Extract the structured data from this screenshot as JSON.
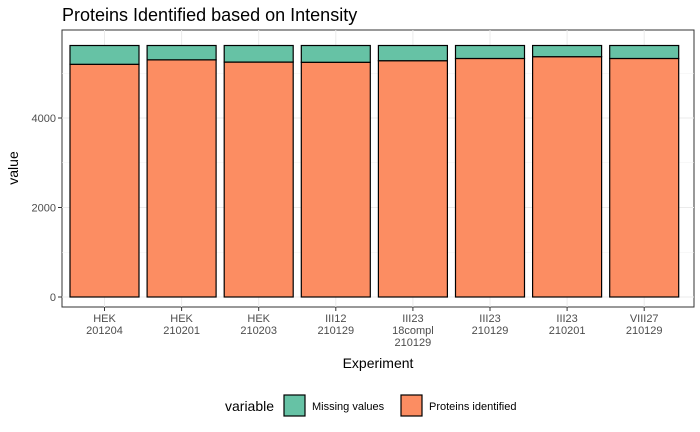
{
  "chart_data": {
    "type": "bar",
    "stacked": true,
    "title": "Proteins Identified based on Intensity",
    "xlabel": "Experiment",
    "ylabel": "value",
    "ylim": [
      0,
      5900
    ],
    "yticks": [
      0,
      2000,
      4000
    ],
    "ytick_labels": [
      "0",
      "2000",
      "4000"
    ],
    "grid": true,
    "legend": {
      "title": "variable",
      "position": "bottom"
    },
    "categories": [
      [
        "HEK",
        "201204"
      ],
      [
        "HEK",
        "210201"
      ],
      [
        "HEK",
        "210203"
      ],
      [
        "III12",
        "210129"
      ],
      [
        "III23",
        "18compl",
        "210129"
      ],
      [
        "III23",
        "210129"
      ],
      [
        "III23",
        "210201"
      ],
      [
        "VIII27",
        "210129"
      ]
    ],
    "series": [
      {
        "name": "Proteins identified",
        "color": "#fc8d62",
        "values": [
          5200,
          5300,
          5250,
          5245,
          5280,
          5330,
          5370,
          5330
        ]
      },
      {
        "name": "Missing values",
        "color": "#66c2a5",
        "values": [
          420,
          320,
          370,
          375,
          340,
          290,
          250,
          290
        ]
      }
    ]
  }
}
